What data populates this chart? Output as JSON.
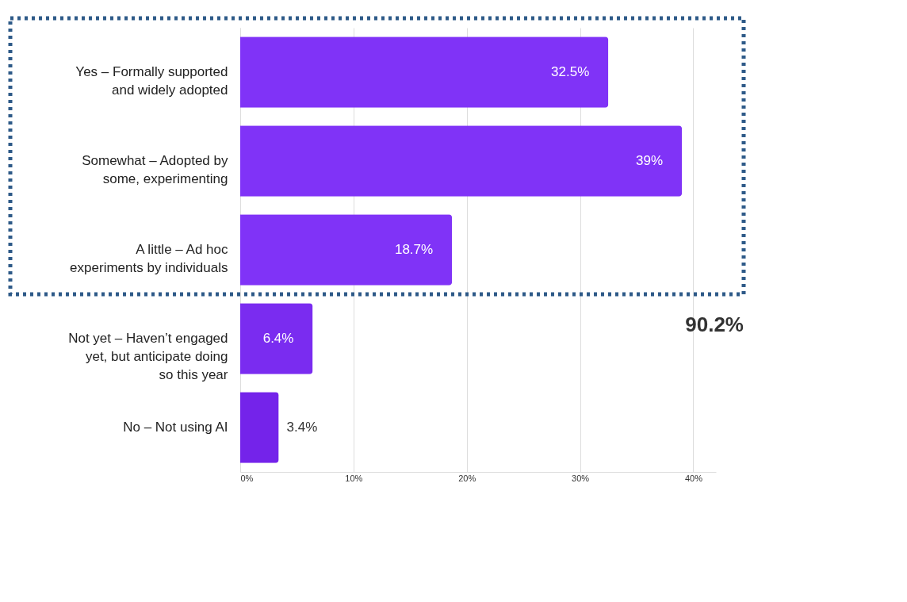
{
  "chart_data": {
    "type": "bar",
    "orientation": "horizontal",
    "categories": [
      "Yes – Formally supported and widely adopted",
      "Somewhat – Adopted by some, experimenting",
      "A little – Ad hoc experiments by individuals",
      "Not yet – Haven’t engaged yet, but anticipate doing so this year",
      "No – Not using AI"
    ],
    "values": [
      32.5,
      39,
      18.7,
      6.4,
      3.4
    ],
    "colors": [
      "#8033f7",
      "#8033f7",
      "#8033f7",
      "#7a2cf0",
      "#7423ea"
    ],
    "value_labels": [
      "32.5%",
      "39%",
      "18.7%",
      "6.4%",
      "3.4%"
    ],
    "xlim": [
      0,
      42
    ],
    "xticks": [
      {
        "value": 0,
        "label": "0%"
      },
      {
        "value": 10,
        "label": "10%"
      },
      {
        "value": 20,
        "label": "20%"
      },
      {
        "value": 30,
        "label": "30%"
      },
      {
        "value": 40,
        "label": "40%"
      }
    ],
    "grid": "x",
    "annotations": [
      "90.2%"
    ]
  }
}
